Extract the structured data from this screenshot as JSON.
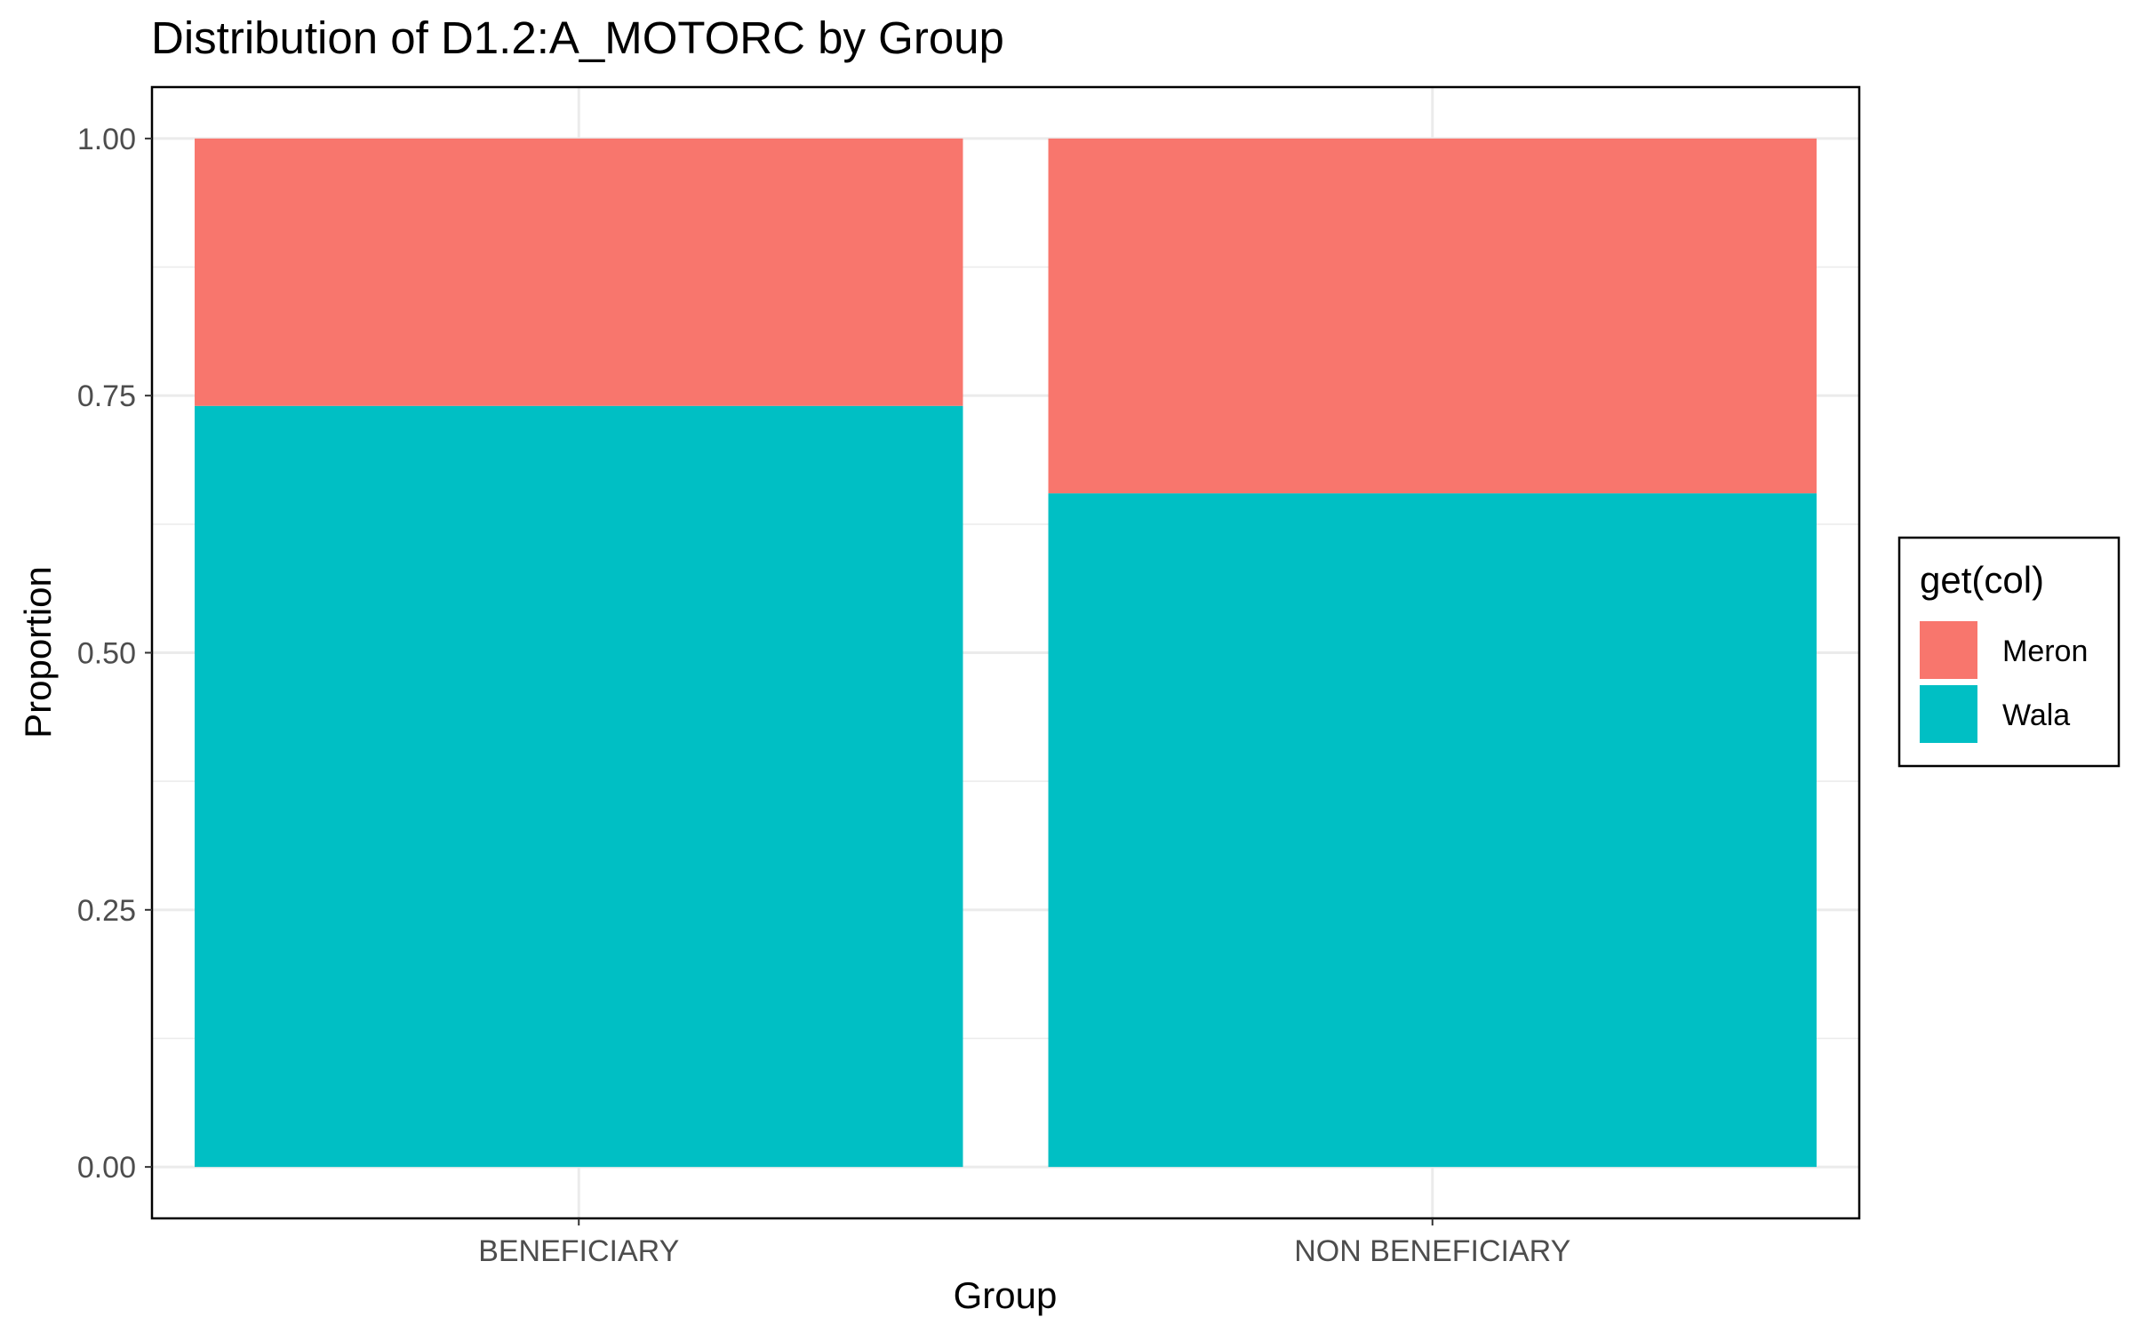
{
  "chart_data": {
    "type": "bar",
    "stacked": true,
    "title": "Distribution of D1.2:A_MOTORC by Group",
    "xlabel": "Group",
    "ylabel": "Proportion",
    "categories": [
      "BENEFICIARY",
      "NON BENEFICIARY"
    ],
    "series": [
      {
        "name": "Meron",
        "color": "#F8766D",
        "values": [
          0.26,
          0.345
        ]
      },
      {
        "name": "Wala",
        "color": "#00BFC4",
        "values": [
          0.74,
          0.655
        ]
      }
    ],
    "ylim": [
      -0.05,
      1.05
    ],
    "yticks": [
      0.0,
      0.25,
      0.5,
      0.75,
      1.0
    ],
    "ytick_labels": [
      "0.00",
      "0.25",
      "0.50",
      "0.75",
      "1.00"
    ],
    "grid": true,
    "legend": {
      "title": "get(col)",
      "position": "right"
    }
  }
}
